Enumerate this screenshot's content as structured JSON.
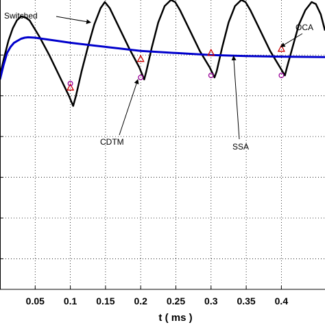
{
  "chart_data": {
    "type": "line",
    "xlabel": "t ( ms )",
    "ylabel": "",
    "title": "",
    "xlim": [
      0.0,
      0.462
    ],
    "ylim": [
      -1.05,
      0.37
    ],
    "xticks": [
      0.05,
      0.1,
      0.15,
      0.2,
      0.25,
      0.3,
      0.35,
      0.4
    ],
    "xtick_labels": [
      "0.05",
      "0.1",
      "0.15",
      "0.2",
      "0.25",
      "0.3",
      "0.35",
      "0.4"
    ],
    "yticks": [
      0.1,
      -0.1,
      -0.3,
      -0.5,
      -0.7,
      -0.9
    ],
    "grid": true,
    "series": [
      {
        "name": "Switched",
        "style": "line",
        "color": "#000000",
        "x": [
          0.0,
          0.006,
          0.012,
          0.018,
          0.024,
          0.03,
          0.036,
          0.042,
          0.056,
          0.07,
          0.084,
          0.098,
          0.104,
          0.108,
          0.116,
          0.125,
          0.134,
          0.143,
          0.149,
          0.156,
          0.17,
          0.184,
          0.198,
          0.205,
          0.208,
          0.216,
          0.225,
          0.234,
          0.243,
          0.249,
          0.256,
          0.27,
          0.284,
          0.298,
          0.305,
          0.308,
          0.316,
          0.325,
          0.334,
          0.343,
          0.349,
          0.356,
          0.37,
          0.384,
          0.398,
          0.405,
          0.408,
          0.416,
          0.425,
          0.434,
          0.443,
          0.449,
          0.456,
          0.462
        ],
        "y": [
          0.0,
          0.09,
          0.17,
          0.23,
          0.27,
          0.29,
          0.285,
          0.27,
          0.19,
          0.1,
          0.0,
          -0.1,
          -0.15,
          -0.1,
          0.02,
          0.14,
          0.25,
          0.33,
          0.36,
          0.33,
          0.23,
          0.13,
          0.04,
          -0.02,
          0.02,
          0.14,
          0.26,
          0.34,
          0.37,
          0.36,
          0.32,
          0.22,
          0.12,
          0.04,
          -0.01,
          0.02,
          0.14,
          0.26,
          0.34,
          0.37,
          0.36,
          0.32,
          0.22,
          0.12,
          0.04,
          0.0,
          0.04,
          0.14,
          0.25,
          0.32,
          0.36,
          0.35,
          0.3,
          0.22
        ]
      },
      {
        "name": "SSA",
        "style": "line",
        "color": "#0000cc",
        "x": [
          0.0,
          0.005,
          0.01,
          0.015,
          0.02,
          0.025,
          0.03,
          0.035,
          0.04,
          0.05,
          0.06,
          0.08,
          0.1,
          0.15,
          0.2,
          0.25,
          0.3,
          0.35,
          0.4,
          0.462
        ],
        "y": [
          -0.02,
          0.05,
          0.11,
          0.14,
          0.16,
          0.17,
          0.18,
          0.185,
          0.187,
          0.185,
          0.18,
          0.17,
          0.16,
          0.14,
          0.12,
          0.11,
          0.1,
          0.095,
          0.092,
          0.09
        ]
      },
      {
        "name": "OCA",
        "style": "marker-triangle",
        "color": "#cc0000",
        "x": [
          0.1,
          0.2,
          0.3,
          0.4
        ],
        "y": [
          -0.06,
          0.08,
          0.11,
          0.13
        ]
      },
      {
        "name": "CDTM",
        "style": "marker-circle",
        "color": "#990099",
        "x": [
          0.1,
          0.2,
          0.3,
          0.4
        ],
        "y": [
          -0.04,
          -0.01,
          0.0,
          0.0
        ]
      }
    ],
    "annotations": [
      {
        "text": "Switched",
        "target_x": 0.129,
        "target_y": 0.26
      },
      {
        "text": "CDTM",
        "target_x": 0.196,
        "target_y": -0.02
      },
      {
        "text": "SSA",
        "target_x": 0.332,
        "target_y": 0.095
      },
      {
        "text": "OCA",
        "target_x": 0.399,
        "target_y": 0.14
      }
    ]
  }
}
